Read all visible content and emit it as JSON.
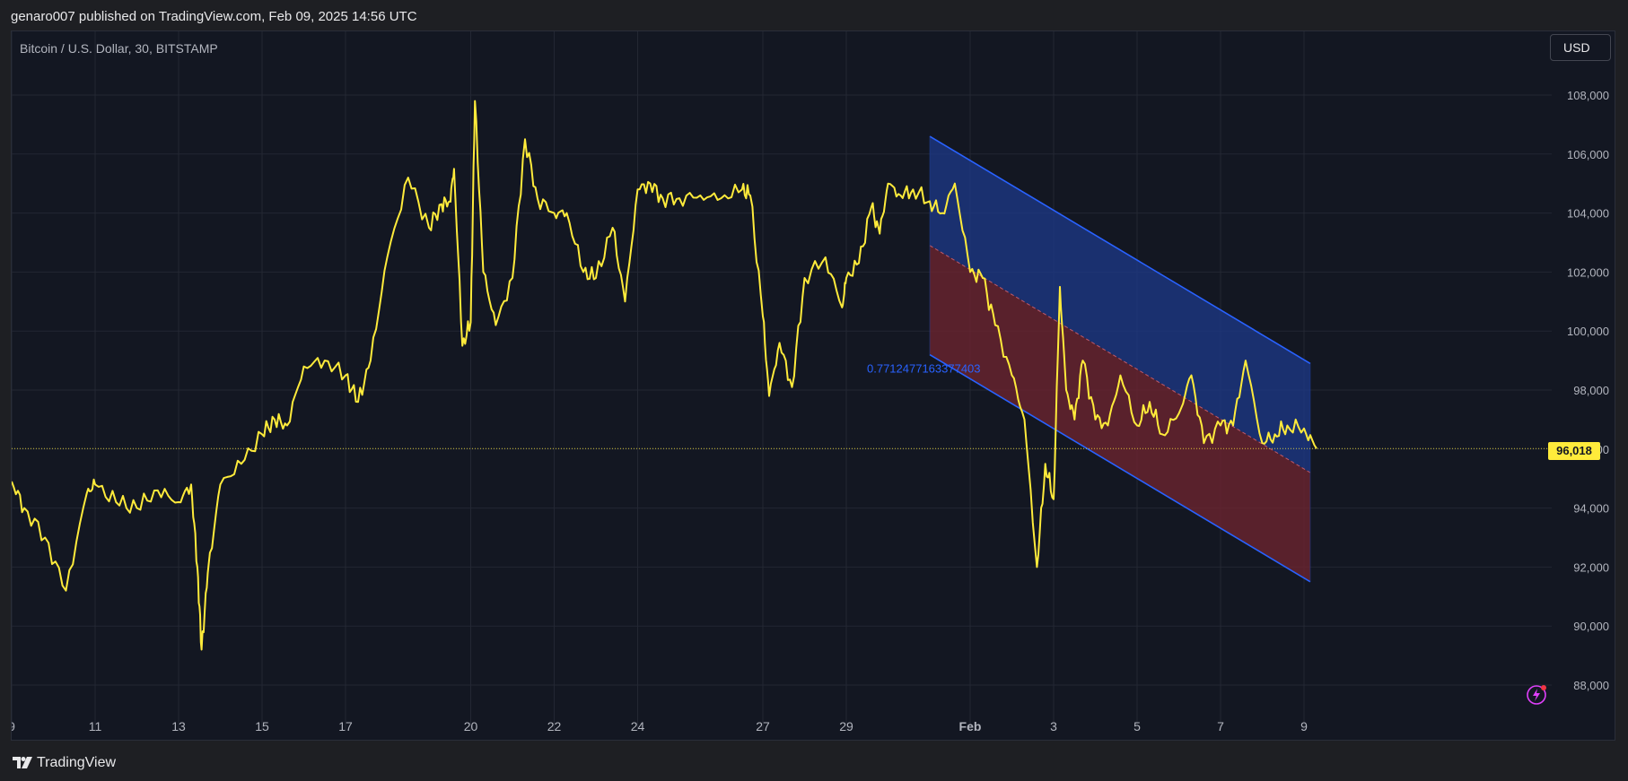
{
  "header": {
    "published_text": "genaro007 published on TradingView.com, Feb 09, 2025 14:56 UTC"
  },
  "symbol_label": "Bitcoin / U.S. Dollar, 30, BITSTAMP",
  "currency_button": "USD",
  "current_price_label": "96,018",
  "footer": {
    "brand": "TradingView"
  },
  "icons": {
    "logo": "tradingview-logo-icon",
    "bolt": "lightning-bolt-icon"
  },
  "colors": {
    "price_line": "#ffeb3b",
    "channel_upper_fill": "#1e3a8a",
    "channel_lower_fill": "#6b2430",
    "channel_line": "#2962ff",
    "annotation": "#2962ff",
    "price_tag": "#ffeb3b",
    "bolt": "#e040fb"
  },
  "chart_data": {
    "type": "line",
    "title": "",
    "xlabel": "",
    "ylabel": "",
    "x_ticks": [
      "9",
      "11",
      "13",
      "15",
      "17",
      "20",
      "22",
      "24",
      "27",
      "29",
      "Feb",
      "3",
      "5",
      "7",
      "9"
    ],
    "y_ticks": [
      88000,
      90000,
      92000,
      94000,
      96000,
      98000,
      100000,
      102000,
      104000,
      106000,
      108000
    ],
    "y_tick_labels": [
      "88,000",
      "90,000",
      "92,000",
      "94,000",
      "96,000",
      "98,000",
      "100,000",
      "102,000",
      "104,000",
      "106,000",
      "108,000"
    ],
    "ylim": [
      87500,
      109500
    ],
    "grid": true,
    "current_price": 96018,
    "series": [
      {
        "x": [
          "9",
          "9.3",
          "9.8",
          "10.3",
          "10.8",
          "11",
          "11.5",
          "12",
          "12.5",
          "13",
          "13.3",
          "13.45",
          "13.55",
          "13.7",
          "14",
          "14.5",
          "15",
          "15.3",
          "15.6",
          "16",
          "16.5",
          "17",
          "17.3",
          "17.6",
          "18",
          "18.5",
          "19",
          "19.3",
          "19.5",
          "19.6",
          "19.8",
          "20",
          "20.1",
          "20.3",
          "20.6",
          "21",
          "21.3",
          "21.6",
          "22",
          "22.3",
          "22.7",
          "23",
          "23.4",
          "23.7",
          "24",
          "24.3",
          "24.6",
          "25",
          "25.5",
          "26",
          "26.5",
          "26.7",
          "27",
          "27.15",
          "27.4",
          "27.7",
          "28",
          "28.5",
          "28.9",
          "29",
          "29.3",
          "29.6",
          "29.8",
          "30",
          "30.3",
          "30.6",
          "31",
          "31.3",
          "31.6",
          "Feb",
          "1.3",
          "1.6",
          "2",
          "2.3",
          "2.6",
          "2.8",
          "3",
          "3.15",
          "3.3",
          "3.5",
          "3.7",
          "4",
          "4.3",
          "4.6",
          "5",
          "5.3",
          "5.6",
          "6",
          "6.3",
          "6.6",
          "7",
          "7.3",
          "7.6",
          "8",
          "8.3",
          "8.6",
          "9",
          "9.3"
        ],
        "y": [
          94900,
          94000,
          93000,
          91200,
          94500,
          94800,
          94200,
          94000,
          94600,
          94200,
          94800,
          92000,
          89200,
          91800,
          94800,
          95500,
          96500,
          97000,
          96800,
          98800,
          99000,
          98500,
          97600,
          99000,
          102500,
          105200,
          103500,
          104300,
          104400,
          105500,
          99500,
          100300,
          107800,
          102000,
          100200,
          101800,
          106500,
          104500,
          104000,
          104000,
          102000,
          101800,
          103500,
          101000,
          104800,
          105000,
          104500,
          104500,
          104600,
          104500,
          104800,
          104600,
          100500,
          97800,
          99600,
          98100,
          101800,
          102500,
          100800,
          101800,
          102300,
          104200,
          103300,
          105000,
          104600,
          104800,
          104400,
          104000,
          105000,
          102000,
          101800,
          100200,
          98500,
          97000,
          92000,
          95500,
          94300,
          101500,
          98000,
          97000,
          99000,
          97000,
          96800,
          98500,
          96800,
          97600,
          96500,
          97200,
          98500,
          96200,
          96800,
          96800,
          99000,
          96200,
          96500,
          96800,
          96700,
          96018
        ],
        "name": ""
      }
    ],
    "channel": {
      "upper_line": {
        "x": [
          "31",
          "9.15"
        ],
        "y": [
          106600,
          98900
        ]
      },
      "mid_line": {
        "x": [
          "31",
          "9.15"
        ],
        "y": [
          102900,
          95200
        ]
      },
      "lower_line": {
        "x": [
          "31",
          "9.15"
        ],
        "y": [
          99200,
          91500
        ]
      },
      "label": "0.7712477163377403"
    }
  }
}
